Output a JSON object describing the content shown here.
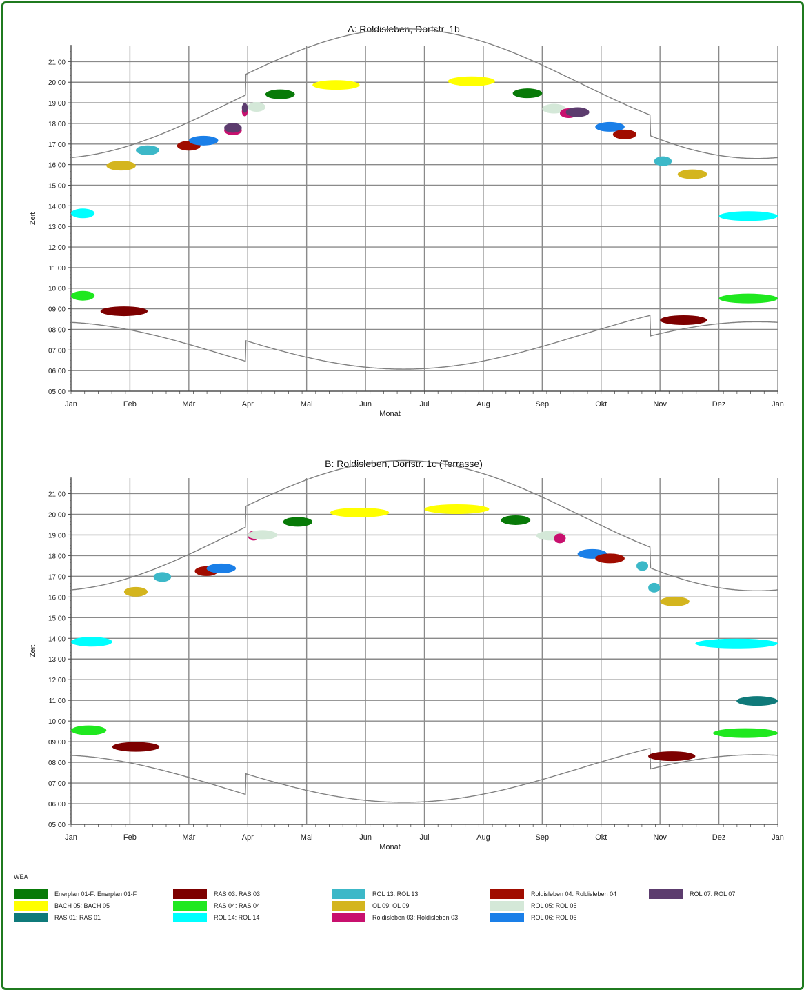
{
  "chart_data": [
    {
      "type": "scatter",
      "title": "A: Roldisleben, Dorfstr. 1b",
      "xlabel": "Monat",
      "ylabel": "Zeit",
      "x_ticks": [
        "Jan",
        "Feb",
        "Mär",
        "Apr",
        "Mai",
        "Jun",
        "Jul",
        "Aug",
        "Sep",
        "Okt",
        "Nov",
        "Dez",
        "Jan"
      ],
      "y_ticks": [
        "05:00",
        "06:00",
        "07:00",
        "08:00",
        "09:00",
        "10:00",
        "11:00",
        "12:00",
        "13:00",
        "14:00",
        "15:00",
        "16:00",
        "17:00",
        "18:00",
        "19:00",
        "20:00",
        "21:00"
      ],
      "ylim": [
        "05:00",
        "21:45"
      ],
      "grid": true,
      "sunrise_sunset": true,
      "shadow_events": [
        {
          "wea": "RAS 04: RAS 04",
          "month_from": 0.0,
          "month_to": 0.4,
          "time": "09:38"
        },
        {
          "wea": "ROL 14: ROL 14",
          "month_from": 0.0,
          "month_to": 0.4,
          "time": "13:38"
        },
        {
          "wea": "RAS 03: RAS 03",
          "month_from": 0.5,
          "month_to": 1.3,
          "time": "08:53"
        },
        {
          "wea": "OL 09: OL 09",
          "month_from": 0.6,
          "month_to": 1.1,
          "time": "15:57"
        },
        {
          "wea": "ROL 13: ROL 13",
          "month_from": 1.1,
          "month_to": 1.5,
          "time": "16:42"
        },
        {
          "wea": "Roldisleben 04: Roldisleben 04",
          "month_from": 1.8,
          "month_to": 2.2,
          "time": "16:55"
        },
        {
          "wea": "ROL 06: ROL 06",
          "month_from": 2.0,
          "month_to": 2.5,
          "time": "17:10"
        },
        {
          "wea": "Roldisleben 03: Roldisleben 03",
          "month_from": 2.6,
          "month_to": 2.9,
          "time": "17:40"
        },
        {
          "wea": "ROL 07: ROL 07",
          "month_from": 2.6,
          "month_to": 2.9,
          "time": "17:47"
        },
        {
          "wea": "Roldisleben 03: Roldisleben 03",
          "month_from": 2.9,
          "month_to": 3.0,
          "time": "18:35"
        },
        {
          "wea": "ROL 07: ROL 07",
          "month_from": 2.9,
          "month_to": 3.0,
          "time": "18:45"
        },
        {
          "wea": "ROL 05: ROL 05",
          "month_from": 3.0,
          "month_to": 3.3,
          "time": "18:48"
        },
        {
          "wea": "Enerplan 01-F: Enerplan 01-F",
          "month_from": 3.3,
          "month_to": 3.8,
          "time": "19:25"
        },
        {
          "wea": "BACH 05: BACH 05",
          "month_from": 4.1,
          "month_to": 4.9,
          "time": "19:52"
        },
        {
          "wea": "BACH 05: BACH 05",
          "month_from": 6.4,
          "month_to": 7.2,
          "time": "20:03"
        },
        {
          "wea": "Enerplan 01-F: Enerplan 01-F",
          "month_from": 7.5,
          "month_to": 8.0,
          "time": "19:28"
        },
        {
          "wea": "ROL 05: ROL 05",
          "month_from": 8.0,
          "month_to": 8.4,
          "time": "18:43"
        },
        {
          "wea": "Roldisleben 03: Roldisleben 03",
          "month_from": 8.3,
          "month_to": 8.6,
          "time": "18:30"
        },
        {
          "wea": "ROL 07: ROL 07",
          "month_from": 8.4,
          "month_to": 8.8,
          "time": "18:33"
        },
        {
          "wea": "ROL 06: ROL 06",
          "month_from": 8.9,
          "month_to": 9.4,
          "time": "17:50"
        },
        {
          "wea": "Roldisleben 04: Roldisleben 04",
          "month_from": 9.2,
          "month_to": 9.6,
          "time": "17:28"
        },
        {
          "wea": "ROL 13: ROL 13",
          "month_from": 9.9,
          "month_to": 10.2,
          "time": "16:10"
        },
        {
          "wea": "OL 09: OL 09",
          "month_from": 10.3,
          "month_to": 10.8,
          "time": "15:32"
        },
        {
          "wea": "RAS 03: RAS 03",
          "month_from": 10.0,
          "month_to": 10.8,
          "time": "08:27"
        },
        {
          "wea": "ROL 14: ROL 14",
          "month_from": 11.0,
          "month_to": 12.0,
          "time": "13:30"
        },
        {
          "wea": "RAS 04: RAS 04",
          "month_from": 11.0,
          "month_to": 12.0,
          "time": "09:30"
        }
      ]
    },
    {
      "type": "scatter",
      "title": "B: Roldisleben, Dorfstr. 1c (Terrasse)",
      "xlabel": "Monat",
      "ylabel": "Zeit",
      "x_ticks": [
        "Jan",
        "Feb",
        "Mär",
        "Apr",
        "Mai",
        "Jun",
        "Jul",
        "Aug",
        "Sep",
        "Okt",
        "Nov",
        "Dez",
        "Jan"
      ],
      "y_ticks": [
        "05:00",
        "06:00",
        "07:00",
        "08:00",
        "09:00",
        "10:00",
        "11:00",
        "12:00",
        "13:00",
        "14:00",
        "15:00",
        "16:00",
        "17:00",
        "18:00",
        "19:00",
        "20:00",
        "21:00"
      ],
      "ylim": [
        "05:00",
        "21:45"
      ],
      "grid": true,
      "sunrise_sunset": true,
      "shadow_events": [
        {
          "wea": "RAS 04: RAS 04",
          "month_from": 0.0,
          "month_to": 0.6,
          "time": "09:33"
        },
        {
          "wea": "ROL 14: ROL 14",
          "month_from": 0.0,
          "month_to": 0.7,
          "time": "13:50"
        },
        {
          "wea": "RAS 03: RAS 03",
          "month_from": 0.7,
          "month_to": 1.5,
          "time": "08:45"
        },
        {
          "wea": "OL 09: OL 09",
          "month_from": 0.9,
          "month_to": 1.3,
          "time": "16:15"
        },
        {
          "wea": "ROL 13: ROL 13",
          "month_from": 1.4,
          "month_to": 1.7,
          "time": "16:58"
        },
        {
          "wea": "Roldisleben 04: Roldisleben 04",
          "month_from": 2.1,
          "month_to": 2.5,
          "time": "17:15"
        },
        {
          "wea": "ROL 06: ROL 06",
          "month_from": 2.3,
          "month_to": 2.8,
          "time": "17:23"
        },
        {
          "wea": "Roldisleben 03: Roldisleben 03",
          "month_from": 3.0,
          "month_to": 3.2,
          "time": "18:58"
        },
        {
          "wea": "ROL 05: ROL 05",
          "month_from": 3.0,
          "month_to": 3.5,
          "time": "19:00"
        },
        {
          "wea": "Enerplan 01-F: Enerplan 01-F",
          "month_from": 3.6,
          "month_to": 4.1,
          "time": "19:38"
        },
        {
          "wea": "BACH 05: BACH 05",
          "month_from": 4.4,
          "month_to": 5.4,
          "time": "20:05"
        },
        {
          "wea": "BACH 05: BACH 05",
          "month_from": 6.0,
          "month_to": 7.1,
          "time": "20:15"
        },
        {
          "wea": "Enerplan 01-F: Enerplan 01-F",
          "month_from": 7.3,
          "month_to": 7.8,
          "time": "19:43"
        },
        {
          "wea": "ROL 05: ROL 05",
          "month_from": 7.9,
          "month_to": 8.4,
          "time": "18:58"
        },
        {
          "wea": "Roldisleben 03: Roldisleben 03",
          "month_from": 8.2,
          "month_to": 8.4,
          "time": "18:50"
        },
        {
          "wea": "ROL 06: ROL 06",
          "month_from": 8.6,
          "month_to": 9.1,
          "time": "18:05"
        },
        {
          "wea": "Roldisleben 04: Roldisleben 04",
          "month_from": 8.9,
          "month_to": 9.4,
          "time": "17:52"
        },
        {
          "wea": "ROL 13: ROL 13",
          "month_from": 9.6,
          "month_to": 9.8,
          "time": "17:30"
        },
        {
          "wea": "ROL 13: ROL 13",
          "month_from": 9.8,
          "month_to": 10.0,
          "time": "16:27"
        },
        {
          "wea": "OL 09: OL 09",
          "month_from": 10.0,
          "month_to": 10.5,
          "time": "15:47"
        },
        {
          "wea": "RAS 03: RAS 03",
          "month_from": 9.8,
          "month_to": 10.6,
          "time": "08:18"
        },
        {
          "wea": "ROL 14: ROL 14",
          "month_from": 10.6,
          "month_to": 12.0,
          "time": "13:45"
        },
        {
          "wea": "RAS 01: RAS 01",
          "month_from": 11.3,
          "month_to": 12.0,
          "time": "10:58"
        },
        {
          "wea": "RAS 04: RAS 04",
          "month_from": 10.9,
          "month_to": 12.0,
          "time": "09:25"
        }
      ]
    }
  ],
  "legend": {
    "title": "WEA",
    "items": [
      {
        "label": "Enerplan 01-F: Enerplan 01-F",
        "color": "#087a08"
      },
      {
        "label": "BACH 05: BACH 05",
        "color": "#ffff00"
      },
      {
        "label": "RAS 01: RAS 01",
        "color": "#0f7a7a"
      },
      {
        "label": "RAS 03: RAS 03",
        "color": "#7d0000"
      },
      {
        "label": "RAS 04: RAS 04",
        "color": "#1fe81f"
      },
      {
        "label": "ROL 14: ROL 14",
        "color": "#00ffff"
      },
      {
        "label": "ROL 13: ROL 13",
        "color": "#3cb8c8"
      },
      {
        "label": "OL 09: OL 09",
        "color": "#d4b51e"
      },
      {
        "label": "Roldisleben 03: Roldisleben 03",
        "color": "#c8106e"
      },
      {
        "label": "Roldisleben 04: Roldisleben 04",
        "color": "#a00c00"
      },
      {
        "label": "ROL 05: ROL 05",
        "color": "#d4e8d8"
      },
      {
        "label": "ROL 06: ROL 06",
        "color": "#1a7fe8"
      },
      {
        "label": "ROL 07: ROL 07",
        "color": "#5c3c6e"
      }
    ]
  }
}
